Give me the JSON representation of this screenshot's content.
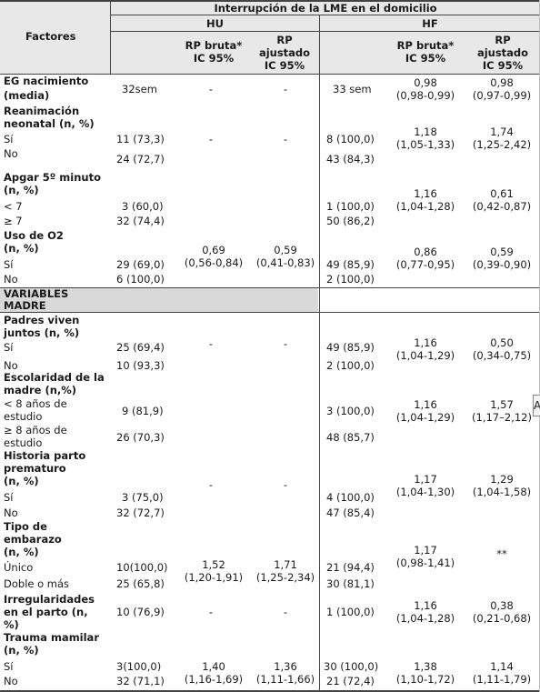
{
  "header": {
    "group": "Interrupción de la LME en el domicilio",
    "factores": "Factores",
    "hu": "HU",
    "hf": "HF",
    "rp_bruta": [
      "RP bruta*",
      "IC 95%"
    ],
    "rp_ajustado": [
      "RP",
      "ajustado",
      "IC 95%"
    ]
  },
  "rows": {
    "eg_label": [
      "EG nacimiento",
      "(media)"
    ],
    "eg_hu": "32sem",
    "eg_hu_rpb": "-",
    "eg_hu_rpa": "-",
    "eg_hf": "33 sem",
    "eg_hf_rpb": [
      "0,98",
      "(0,98-0,99)"
    ],
    "eg_hf_rpa": [
      "0,98",
      "(0,97-0,99)"
    ],
    "rean_label": [
      "Reanimación",
      "neonatal (n, %)"
    ],
    "rean_si": "Sí",
    "rean_no": "No",
    "rean_hu_si": "11 (73,3)",
    "rean_hu_no": "24 (72,7)",
    "rean_hu_rpb": "-",
    "rean_hu_rpa": "-",
    "rean_hf_si": "8 (100,0)",
    "rean_hf_no": "43 (84,3)",
    "rean_hf_rpb": [
      "1,18",
      "(1,05-1,33)"
    ],
    "rean_hf_rpa": [
      "1,74",
      "(1,25-2,42)"
    ],
    "apgar_label": [
      "Apgar 5º minuto",
      "(n, %)"
    ],
    "apgar_lt": "< 7",
    "apgar_ge": "≥ 7",
    "apgar_hu_lt": "3 (60,0)",
    "apgar_hu_ge": "32 (74,4)",
    "apgar_hf_lt": "1 (100,0)",
    "apgar_hf_ge": "50 (86,2)",
    "apgar_hf_rpb": [
      "1,16",
      "(1,04-1,28)"
    ],
    "apgar_hf_rpa": [
      "0,61",
      "(0,42-0,87)"
    ],
    "o2_label": [
      "Uso de O2",
      "(n, %)"
    ],
    "o2_si": "Sí",
    "o2_no": "No",
    "o2_hu_si": "29 (69,0)",
    "o2_hu_no": "6 (100,0)",
    "o2_hu_rpb": [
      "0,69",
      "(0,56-0,84)"
    ],
    "o2_hu_rpa": [
      "0,59",
      "(0,41-0,83)"
    ],
    "o2_hf_si": "49 (85,9)",
    "o2_hf_no": "2 (100,0)",
    "o2_hf_rpb": [
      "0,86",
      "(0,77-0,95)"
    ],
    "o2_hf_rpa": [
      "0,59",
      "(0,39-0,90)"
    ],
    "section_madre": [
      "VARIABLES",
      "MADRE"
    ],
    "padres_label": [
      "Padres viven",
      "juntos (n, %)"
    ],
    "padres_si": "Sí",
    "padres_no": "No",
    "padres_hu_si": "25 (69,4)",
    "padres_hu_no": "10 (93,3)",
    "padres_hu_rpb": "-",
    "padres_hu_rpa": "-",
    "padres_hf_si": "49 (85,9)",
    "padres_hf_no": "2 (100,0)",
    "padres_hf_rpb": [
      "1,16",
      "(1,04-1,29)"
    ],
    "padres_hf_rpa": [
      "0,50",
      "(0,34-0,75)"
    ],
    "esc_label": [
      "Escolaridad de la",
      "madre (n,%)"
    ],
    "esc_lt": [
      "< 8 años de",
      "estudio"
    ],
    "esc_ge": [
      "≥ 8 años de",
      "estudio"
    ],
    "esc_hu_lt": "9 (81,9)",
    "esc_hu_ge": "26 (70,3)",
    "esc_hf_lt": "3 (100,0)",
    "esc_hf_ge": "48 (85,7)",
    "esc_hf_rpb": [
      "1,16",
      "(1,04-1,29)"
    ],
    "esc_hf_rpa": [
      "1,57",
      "(1,17–2,12)"
    ],
    "parto_label": [
      "Historia parto",
      "prematuro",
      "(n, %)"
    ],
    "parto_si": "Sí",
    "parto_no": "No",
    "parto_hu_si": "3 (75,0)",
    "parto_hu_no": "32 (72,7)",
    "parto_hu_rpb": "-",
    "parto_hu_rpa": "-",
    "parto_hf_si": "4 (100,0)",
    "parto_hf_no": "47 (85,4)",
    "parto_hf_rpb": [
      "1,17",
      "(1,04-1,30)"
    ],
    "parto_hf_rpa": [
      "1,29",
      "(1,04-1,58)"
    ],
    "emb_label": [
      "Tipo de",
      "embarazo",
      "(n, %)"
    ],
    "emb_unico": "Único",
    "emb_doble": "Doble o más",
    "emb_hu_unico": "10(100,0)",
    "emb_hu_doble": "25 (65,8)",
    "emb_hu_rpb": [
      "1,52",
      "(1,20-1,91)"
    ],
    "emb_hu_rpa": [
      "1,71",
      "(1,25-2,34)"
    ],
    "emb_hf_unico": "21 (94,4)",
    "emb_hf_doble": "30 (81,1)",
    "emb_hf_rpb": [
      "1,17",
      "(0,98-1,41)"
    ],
    "emb_hf_rpa": "**",
    "irr_label": [
      "Irregularidades",
      "en el parto (n,",
      "%)"
    ],
    "irr_hu": "10 (76,9)",
    "irr_hu_rpb": "-",
    "irr_hu_rpa": "-",
    "irr_hf": "1 (100,0)",
    "irr_hf_rpb": [
      "1,16",
      "(1,04-1,28)"
    ],
    "irr_hf_rpa": [
      "0,38",
      "(0,21-0,68)"
    ],
    "trauma_label": [
      "Trauma mamilar",
      "(n, %)"
    ],
    "trauma_si": "Sí",
    "trauma_no": "No",
    "trauma_hu_si": "3(100,0)",
    "trauma_hu_no": "32 (71,1)",
    "trauma_hu_rpb": [
      "1,40",
      "(1,16-1,69)"
    ],
    "trauma_hu_rpa": [
      "1,36",
      "(1,11-1,66)"
    ],
    "trauma_hf_si": "30 (100,0)",
    "trauma_hf_no": "21 (72,4)",
    "trauma_hf_rpb": [
      "1,38",
      "(1,10-1,72)"
    ],
    "trauma_hf_rpa": [
      "1,14",
      "(1,11-1,79)"
    ]
  },
  "badge": "A"
}
